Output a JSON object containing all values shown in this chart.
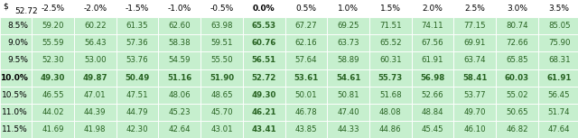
{
  "header_row": [
    "$",
    "52.72",
    "-2.5%",
    "-2.0%",
    "-1.5%",
    "-1.0%",
    "-0.5%",
    "0.0%",
    "0.5%",
    "1.0%",
    "1.5%",
    "2.0%",
    "2.5%",
    "3.0%",
    "3.5%"
  ],
  "row_labels": [
    "8.5%",
    "9.0%",
    "9.5%",
    "10.0%",
    "10.5%",
    "11.0%",
    "11.5%"
  ],
  "bold_row": "10.0%",
  "bold_col": "0.0%",
  "table_data": [
    [
      59.2,
      60.22,
      61.35,
      62.6,
      63.98,
      65.53,
      67.27,
      69.25,
      71.51,
      74.11,
      77.15,
      80.74,
      85.05
    ],
    [
      55.59,
      56.43,
      57.36,
      58.38,
      59.51,
      60.76,
      62.16,
      63.73,
      65.52,
      67.56,
      69.91,
      72.66,
      75.9
    ],
    [
      52.3,
      53.0,
      53.76,
      54.59,
      55.5,
      56.51,
      57.64,
      58.89,
      60.31,
      61.91,
      63.74,
      65.85,
      68.31
    ],
    [
      49.3,
      49.87,
      50.49,
      51.16,
      51.9,
      52.72,
      53.61,
      54.61,
      55.73,
      56.98,
      58.41,
      60.03,
      61.91
    ],
    [
      46.55,
      47.01,
      47.51,
      48.06,
      48.65,
      49.3,
      50.01,
      50.81,
      51.68,
      52.66,
      53.77,
      55.02,
      56.45
    ],
    [
      44.02,
      44.39,
      44.79,
      45.23,
      45.7,
      46.21,
      46.78,
      47.4,
      48.08,
      48.84,
      49.7,
      50.65,
      51.74
    ],
    [
      41.69,
      41.98,
      42.3,
      42.64,
      43.01,
      43.41,
      43.85,
      44.33,
      44.86,
      45.45,
      46.1,
      46.82,
      47.64
    ]
  ],
  "bg_color": "#c6efce",
  "text_color": "#276221",
  "header_bg": "#ffffff",
  "fig_width": 6.4,
  "fig_height": 1.53,
  "dpi": 100
}
